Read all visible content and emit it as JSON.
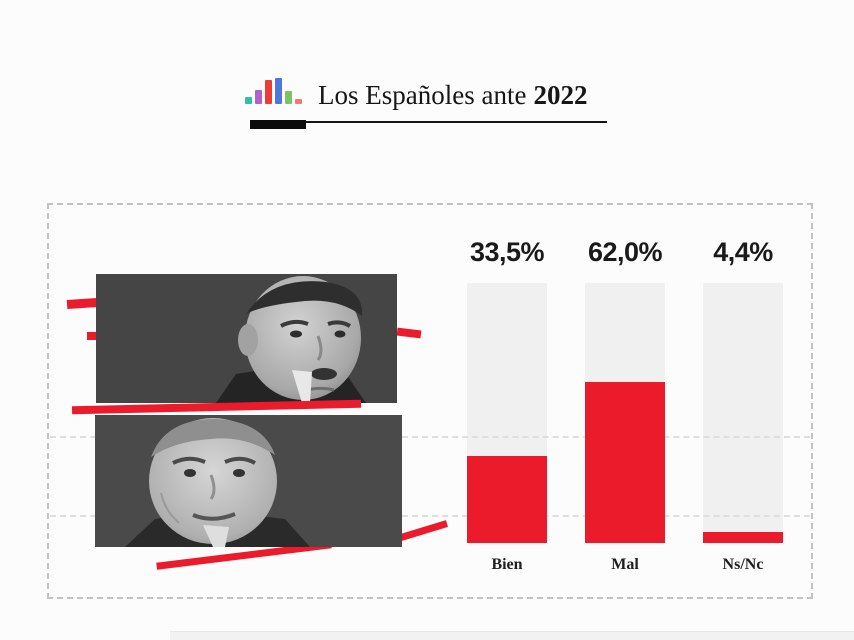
{
  "page": {
    "background_color": "#fcfcfc",
    "accent_red": "#ec1b2b"
  },
  "header": {
    "title_regular": "Los Españoles ante",
    "title_bold": "2022",
    "logo_bars": [
      {
        "name": "teal-bar",
        "color": "#2fc0a7",
        "height": 7
      },
      {
        "name": "purple-bar",
        "color": "#b161cb",
        "height": 14
      },
      {
        "name": "red-bar",
        "color": "#ef3b35",
        "height": 24
      },
      {
        "name": "blue-bar",
        "color": "#4d77dd",
        "height": 26
      },
      {
        "name": "green-bar",
        "color": "#7bc268",
        "height": 13
      },
      {
        "name": "salmon-bar",
        "color": "#ee7a67",
        "height": 5
      }
    ]
  },
  "chart_data": {
    "type": "bar",
    "title": "Los Españoles ante 2022",
    "categories": [
      "Bien",
      "Mal",
      "Ns/Nc"
    ],
    "values": [
      33.5,
      62.0,
      4.4
    ],
    "value_labels": [
      "33,5%",
      "62,0%",
      "4,4%"
    ],
    "unit": "%",
    "ylim": [
      0,
      100
    ],
    "bar_color": "#ec1b2b",
    "track_color": "#f0f0f0",
    "grid": "dashed-horizontal",
    "legend": "none"
  }
}
